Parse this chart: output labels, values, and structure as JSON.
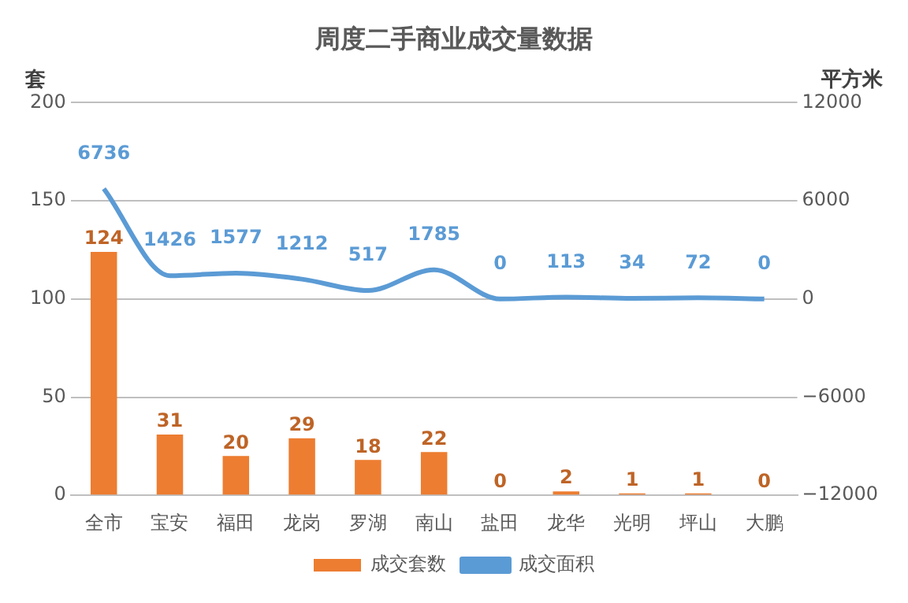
{
  "chart_data": {
    "type": "bar",
    "title": "周度二手商业成交量数据",
    "ylabel": "套",
    "y2label": "平方米",
    "categories": [
      "全市",
      "宝安",
      "福田",
      "龙岗",
      "罗湖",
      "南山",
      "盐田",
      "龙华",
      "光明",
      "坪山",
      "大鹏"
    ],
    "series": [
      {
        "name": "成交套数",
        "color": "#ed7d31",
        "values": [
          124,
          31,
          20,
          29,
          18,
          22,
          0,
          2,
          1,
          1,
          0
        ]
      },
      {
        "name": "成交面积",
        "type": "line",
        "axis": "y2",
        "color": "#5b9bd5",
        "values": [
          6736,
          1426,
          1577,
          1212,
          517,
          1785,
          0,
          113,
          34,
          72,
          0
        ]
      }
    ],
    "ylim": [
      0,
      200
    ],
    "yticks": [
      0,
      50,
      100,
      150,
      200
    ],
    "y2lim": [
      -12000,
      12000
    ],
    "y2ticks": [
      {
        "value": -12000,
        "label": "−12000"
      },
      {
        "value": -6000,
        "label": "−6000"
      },
      0,
      6000,
      12000
    ],
    "grid": "y",
    "legend": "bottom",
    "data_labels": true,
    "marker": "none"
  }
}
